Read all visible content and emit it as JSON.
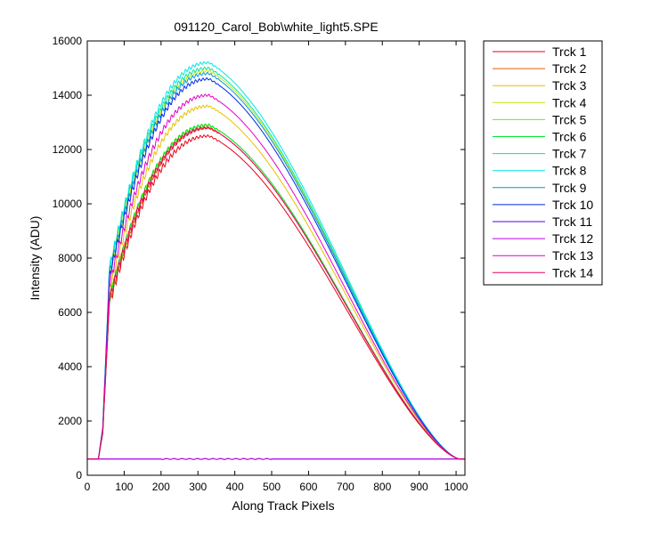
{
  "chart_data": {
    "type": "line",
    "title": "091120_Carol_Bob\\white_light5.SPE",
    "xlabel": "Along Track Pixels",
    "ylabel": "Intensity (ADU)",
    "xlim": [
      0,
      1024
    ],
    "ylim": [
      0,
      16000
    ],
    "xticks": [
      0,
      100,
      200,
      300,
      400,
      500,
      600,
      700,
      800,
      900,
      1000
    ],
    "yticks": [
      0,
      2000,
      4000,
      6000,
      8000,
      10000,
      12000,
      14000,
      16000
    ],
    "grid": false,
    "legend_position": "outside-right-top",
    "baseline": 600,
    "series": [
      {
        "name": "Trck 1",
        "color": "#e6001a",
        "peak": 12500
      },
      {
        "name": "Trck 2",
        "color": "#e65c00",
        "peak": 12800
      },
      {
        "name": "Trck 3",
        "color": "#e6c200",
        "peak": 13600
      },
      {
        "name": "Trck 4",
        "color": "#c8e600",
        "peak": 14900
      },
      {
        "name": "Trck 5",
        "color": "#7fe600",
        "peak": 12900
      },
      {
        "name": "Trck 6",
        "color": "#00e62e",
        "peak": 12900
      },
      {
        "name": "Trck 7",
        "color": "#00e6a0",
        "peak": 15000
      },
      {
        "name": "Trck 8",
        "color": "#00e6e6",
        "peak": 15200
      },
      {
        "name": "Trck 9",
        "color": "#0096e6",
        "peak": 14800
      },
      {
        "name": "Trck 10",
        "color": "#0028e6",
        "peak": 14600
      },
      {
        "name": "Trck 11",
        "color": "#5500e6",
        "peak": 600
      },
      {
        "name": "Trck 12",
        "color": "#b400e6",
        "peak": 600
      },
      {
        "name": "Trck 13",
        "color": "#e600c8",
        "peak": 14000
      },
      {
        "name": "Trck 14",
        "color": "#e60064",
        "peak": 12800
      }
    ]
  }
}
